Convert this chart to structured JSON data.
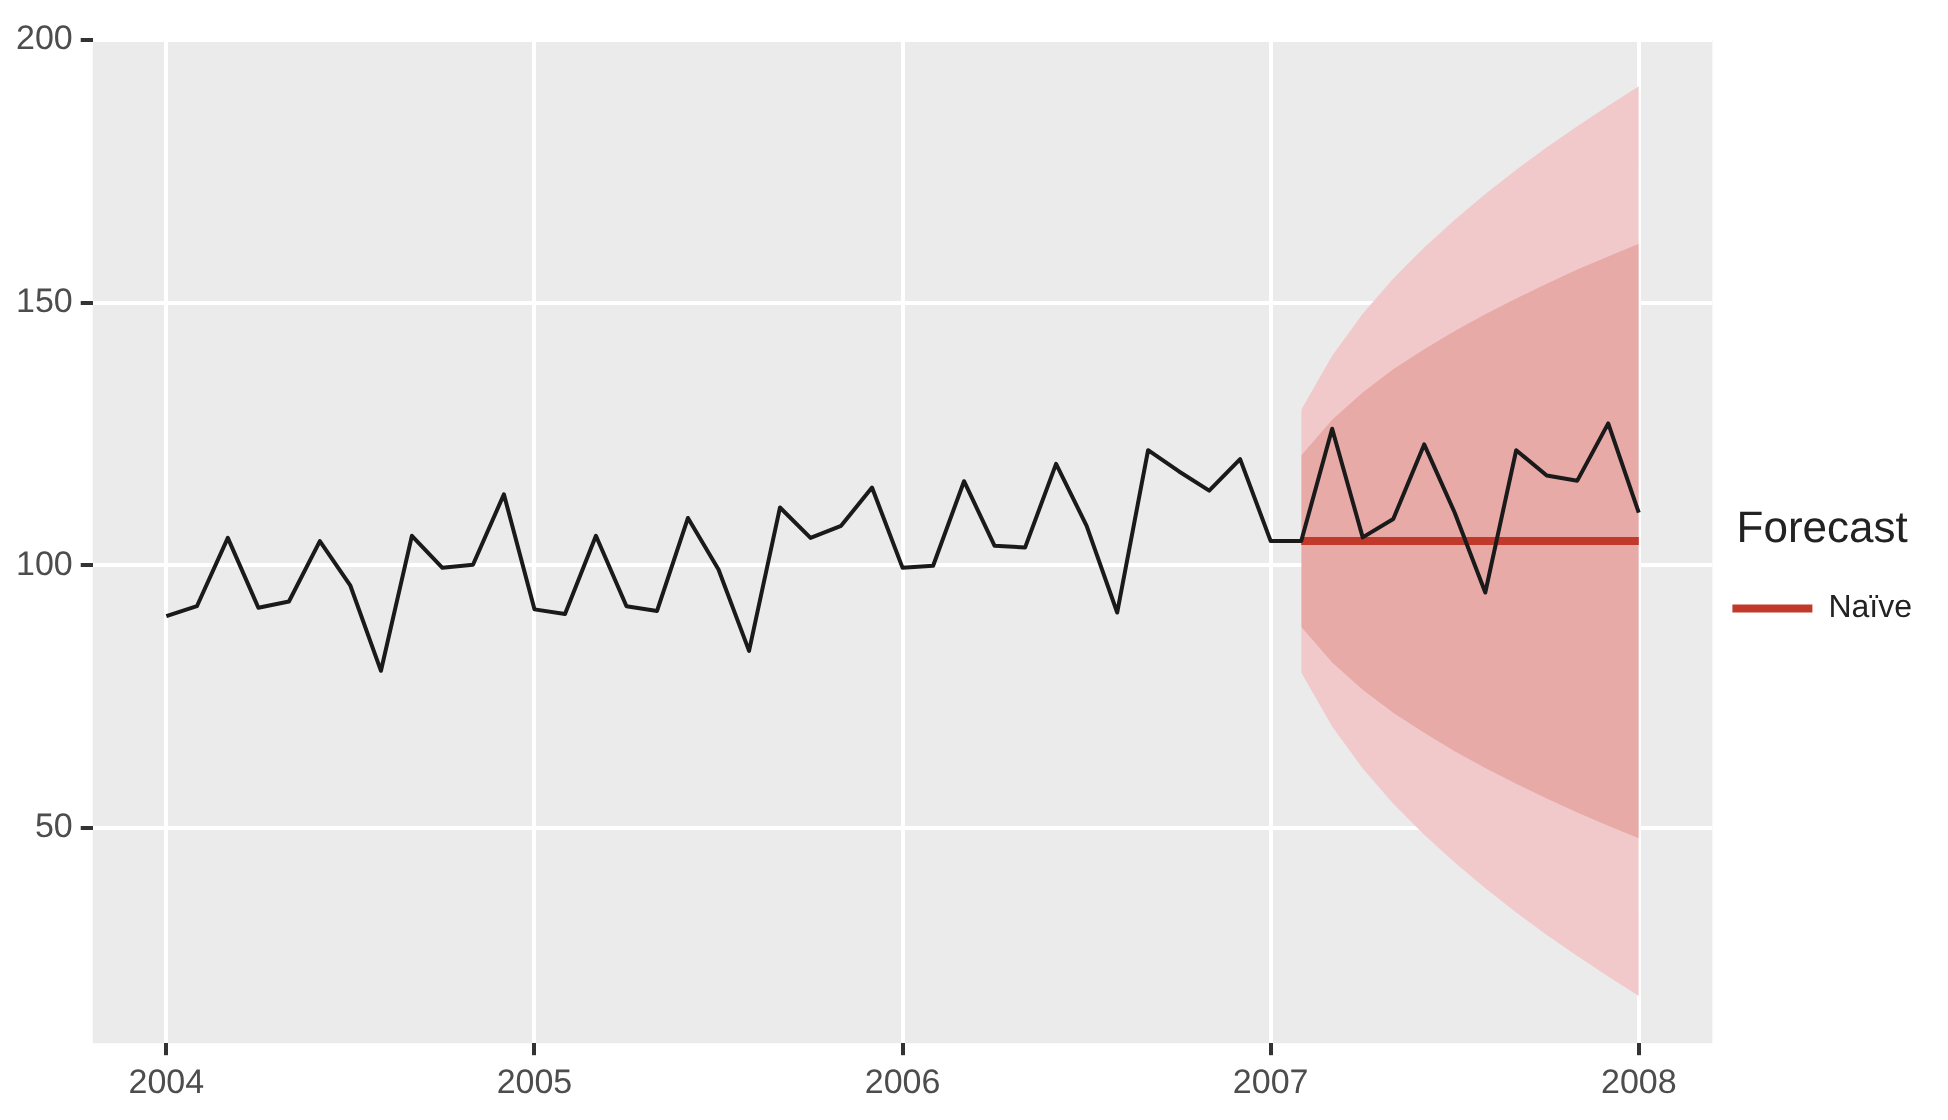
{
  "chart_data": {
    "type": "line",
    "legend_title": "Forecast",
    "legend": "right",
    "grid": true,
    "xlim": [
      2003.8,
      2008.2
    ],
    "xticks": [
      2004,
      2005,
      2006,
      2007,
      2008
    ],
    "ylim": [
      9,
      200
    ],
    "yticks": [
      50,
      100,
      150,
      200
    ],
    "series": [
      {
        "color": "#1a1a1a",
        "x": [
          2004,
          2004.083,
          2004.167,
          2004.25,
          2004.333,
          2004.417,
          2004.5,
          2004.583,
          2004.667,
          2004.75,
          2004.833,
          2004.917,
          2005,
          2005.083,
          2005.167,
          2005.25,
          2005.333,
          2005.417,
          2005.5,
          2005.583,
          2005.667,
          2005.75,
          2005.833,
          2005.917,
          2006,
          2006.083,
          2006.167,
          2006.25,
          2006.333,
          2006.417,
          2006.5,
          2006.583,
          2006.667,
          2006.75,
          2006.833,
          2006.917,
          2007,
          2007.083,
          2007.167,
          2007.25,
          2007.333,
          2007.417,
          2007.5,
          2007.583,
          2007.667,
          2007.75,
          2007.833,
          2007.917,
          2008
        ],
        "values": [
          90.3,
          92.2,
          105.2,
          91.9,
          93.1,
          104.6,
          96.1,
          79.9,
          105.6,
          99.5,
          100.1,
          113.5,
          91.6,
          90.7,
          105.6,
          92.2,
          91.3,
          109.0,
          99.2,
          83.7,
          111.0,
          105.2,
          107.5,
          114.8,
          99.5,
          99.9,
          116.0,
          103.7,
          103.4,
          119.3,
          107.5,
          91.0,
          121.9,
          117.9,
          114.2,
          120.2,
          104.6,
          104.6,
          126.0,
          105.3,
          108.8,
          123.0,
          110.0,
          94.8,
          121.9,
          117.1,
          116.1,
          127.0,
          110.0
        ]
      },
      {
        "color": "#f2c9cb",
        "x": [
          2007.083,
          2007.167,
          2007.25,
          2007.333,
          2007.417,
          2007.5,
          2007.583,
          2007.667,
          2007.75,
          2007.833,
          2007.917,
          2008
        ],
        "values": [
          null,
          null,
          null,
          null,
          null,
          null,
          null,
          null,
          null,
          null,
          null,
          null
        ],
        "lower": [
          79.6,
          69.3,
          61.3,
          54.6,
          48.7,
          43.4,
          38.5,
          33.9,
          29.6,
          25.6,
          21.7,
          18.0
        ],
        "upper": [
          129.6,
          139.9,
          147.9,
          154.6,
          160.5,
          165.8,
          170.7,
          175.3,
          179.6,
          183.6,
          187.5,
          191.2
        ]
      },
      {
        "name": "Naïve",
        "color": "#c0392b",
        "x": [
          2007.083,
          2007.167,
          2007.25,
          2007.333,
          2007.417,
          2007.5,
          2007.583,
          2007.667,
          2007.75,
          2007.833,
          2007.917,
          2008
        ],
        "values": [
          104.6,
          104.6,
          104.6,
          104.6,
          104.6,
          104.6,
          104.6,
          104.6,
          104.6,
          104.6,
          104.6,
          104.6
        ],
        "lower": [
          88.3,
          81.5,
          76.3,
          71.9,
          68.1,
          64.6,
          61.4,
          58.4,
          55.6,
          52.9,
          50.4,
          48.0
        ],
        "upper": [
          120.9,
          127.7,
          132.9,
          137.3,
          141.1,
          144.6,
          147.8,
          150.8,
          153.6,
          156.3,
          158.8,
          161.2
        ]
      }
    ]
  }
}
